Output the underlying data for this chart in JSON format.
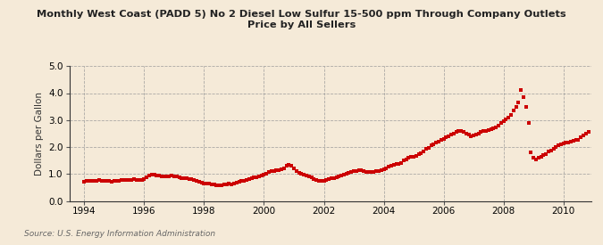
{
  "title": "Monthly West Coast (PADD 5) No 2 Diesel Low Sulfur 15-500 ppm Through Company Outlets\nPrice by All Sellers",
  "ylabel": "Dollars per Gallon",
  "source": "Source: U.S. Energy Information Administration",
  "background_color": "#f5ead8",
  "plot_bg_color": "#f5ead8",
  "line_color": "#cc0000",
  "marker": "s",
  "markersize": 2.2,
  "linewidth": 0.0,
  "ylim": [
    0.0,
    5.0
  ],
  "yticks": [
    0.0,
    1.0,
    2.0,
    3.0,
    4.0,
    5.0
  ],
  "xlim_start": 1993.5,
  "xlim_end": 2010.92,
  "xticks": [
    1994,
    1996,
    1998,
    2000,
    2002,
    2004,
    2006,
    2008,
    2010
  ],
  "data": [
    [
      1994.0,
      0.72
    ],
    [
      1994.083,
      0.73
    ],
    [
      1994.167,
      0.74
    ],
    [
      1994.25,
      0.73
    ],
    [
      1994.333,
      0.73
    ],
    [
      1994.417,
      0.74
    ],
    [
      1994.5,
      0.77
    ],
    [
      1994.583,
      0.76
    ],
    [
      1994.667,
      0.75
    ],
    [
      1994.75,
      0.74
    ],
    [
      1994.833,
      0.73
    ],
    [
      1994.917,
      0.72
    ],
    [
      1995.0,
      0.73
    ],
    [
      1995.083,
      0.74
    ],
    [
      1995.167,
      0.75
    ],
    [
      1995.25,
      0.77
    ],
    [
      1995.333,
      0.77
    ],
    [
      1995.417,
      0.77
    ],
    [
      1995.5,
      0.78
    ],
    [
      1995.583,
      0.79
    ],
    [
      1995.667,
      0.8
    ],
    [
      1995.75,
      0.79
    ],
    [
      1995.833,
      0.78
    ],
    [
      1995.917,
      0.77
    ],
    [
      1996.0,
      0.82
    ],
    [
      1996.083,
      0.88
    ],
    [
      1996.167,
      0.95
    ],
    [
      1996.25,
      0.97
    ],
    [
      1996.333,
      0.96
    ],
    [
      1996.417,
      0.94
    ],
    [
      1996.5,
      0.93
    ],
    [
      1996.583,
      0.91
    ],
    [
      1996.667,
      0.9
    ],
    [
      1996.75,
      0.91
    ],
    [
      1996.833,
      0.92
    ],
    [
      1996.917,
      0.93
    ],
    [
      1997.0,
      0.91
    ],
    [
      1997.083,
      0.9
    ],
    [
      1997.167,
      0.88
    ],
    [
      1997.25,
      0.85
    ],
    [
      1997.333,
      0.85
    ],
    [
      1997.417,
      0.84
    ],
    [
      1997.5,
      0.82
    ],
    [
      1997.583,
      0.8
    ],
    [
      1997.667,
      0.78
    ],
    [
      1997.75,
      0.76
    ],
    [
      1997.833,
      0.72
    ],
    [
      1997.917,
      0.68
    ],
    [
      1998.0,
      0.66
    ],
    [
      1998.083,
      0.64
    ],
    [
      1998.167,
      0.63
    ],
    [
      1998.25,
      0.62
    ],
    [
      1998.333,
      0.6
    ],
    [
      1998.417,
      0.58
    ],
    [
      1998.5,
      0.57
    ],
    [
      1998.583,
      0.58
    ],
    [
      1998.667,
      0.6
    ],
    [
      1998.75,
      0.62
    ],
    [
      1998.833,
      0.63
    ],
    [
      1998.917,
      0.62
    ],
    [
      1999.0,
      0.64
    ],
    [
      1999.083,
      0.67
    ],
    [
      1999.167,
      0.7
    ],
    [
      1999.25,
      0.73
    ],
    [
      1999.333,
      0.76
    ],
    [
      1999.417,
      0.79
    ],
    [
      1999.5,
      0.82
    ],
    [
      1999.583,
      0.85
    ],
    [
      1999.667,
      0.87
    ],
    [
      1999.75,
      0.89
    ],
    [
      1999.833,
      0.91
    ],
    [
      1999.917,
      0.93
    ],
    [
      2000.0,
      0.98
    ],
    [
      2000.083,
      1.02
    ],
    [
      2000.167,
      1.08
    ],
    [
      2000.25,
      1.1
    ],
    [
      2000.333,
      1.12
    ],
    [
      2000.417,
      1.13
    ],
    [
      2000.5,
      1.15
    ],
    [
      2000.583,
      1.18
    ],
    [
      2000.667,
      1.22
    ],
    [
      2000.75,
      1.3
    ],
    [
      2000.833,
      1.35
    ],
    [
      2000.917,
      1.32
    ],
    [
      2001.0,
      1.2
    ],
    [
      2001.083,
      1.1
    ],
    [
      2001.167,
      1.05
    ],
    [
      2001.25,
      1.0
    ],
    [
      2001.333,
      0.97
    ],
    [
      2001.417,
      0.94
    ],
    [
      2001.5,
      0.9
    ],
    [
      2001.583,
      0.87
    ],
    [
      2001.667,
      0.82
    ],
    [
      2001.75,
      0.78
    ],
    [
      2001.833,
      0.75
    ],
    [
      2001.917,
      0.73
    ],
    [
      2002.0,
      0.76
    ],
    [
      2002.083,
      0.78
    ],
    [
      2002.167,
      0.8
    ],
    [
      2002.25,
      0.83
    ],
    [
      2002.333,
      0.85
    ],
    [
      2002.417,
      0.87
    ],
    [
      2002.5,
      0.9
    ],
    [
      2002.583,
      0.93
    ],
    [
      2002.667,
      0.97
    ],
    [
      2002.75,
      1.02
    ],
    [
      2002.833,
      1.05
    ],
    [
      2002.917,
      1.08
    ],
    [
      2003.0,
      1.1
    ],
    [
      2003.083,
      1.12
    ],
    [
      2003.167,
      1.15
    ],
    [
      2003.25,
      1.14
    ],
    [
      2003.333,
      1.1
    ],
    [
      2003.417,
      1.08
    ],
    [
      2003.5,
      1.07
    ],
    [
      2003.583,
      1.08
    ],
    [
      2003.667,
      1.09
    ],
    [
      2003.75,
      1.1
    ],
    [
      2003.833,
      1.12
    ],
    [
      2003.917,
      1.15
    ],
    [
      2004.0,
      1.18
    ],
    [
      2004.083,
      1.22
    ],
    [
      2004.167,
      1.28
    ],
    [
      2004.25,
      1.32
    ],
    [
      2004.333,
      1.35
    ],
    [
      2004.417,
      1.37
    ],
    [
      2004.5,
      1.38
    ],
    [
      2004.583,
      1.42
    ],
    [
      2004.667,
      1.5
    ],
    [
      2004.75,
      1.55
    ],
    [
      2004.833,
      1.6
    ],
    [
      2004.917,
      1.62
    ],
    [
      2005.0,
      1.65
    ],
    [
      2005.083,
      1.68
    ],
    [
      2005.167,
      1.72
    ],
    [
      2005.25,
      1.78
    ],
    [
      2005.333,
      1.85
    ],
    [
      2005.417,
      1.92
    ],
    [
      2005.5,
      1.98
    ],
    [
      2005.583,
      2.05
    ],
    [
      2005.667,
      2.1
    ],
    [
      2005.75,
      2.15
    ],
    [
      2005.833,
      2.2
    ],
    [
      2005.917,
      2.25
    ],
    [
      2006.0,
      2.3
    ],
    [
      2006.083,
      2.35
    ],
    [
      2006.167,
      2.4
    ],
    [
      2006.25,
      2.45
    ],
    [
      2006.333,
      2.5
    ],
    [
      2006.417,
      2.55
    ],
    [
      2006.5,
      2.58
    ],
    [
      2006.583,
      2.6
    ],
    [
      2006.667,
      2.55
    ],
    [
      2006.75,
      2.5
    ],
    [
      2006.833,
      2.45
    ],
    [
      2006.917,
      2.4
    ],
    [
      2007.0,
      2.42
    ],
    [
      2007.083,
      2.45
    ],
    [
      2007.167,
      2.5
    ],
    [
      2007.25,
      2.55
    ],
    [
      2007.333,
      2.58
    ],
    [
      2007.417,
      2.6
    ],
    [
      2007.5,
      2.62
    ],
    [
      2007.583,
      2.65
    ],
    [
      2007.667,
      2.68
    ],
    [
      2007.75,
      2.72
    ],
    [
      2007.833,
      2.8
    ],
    [
      2007.917,
      2.88
    ],
    [
      2008.0,
      2.95
    ],
    [
      2008.083,
      3.02
    ],
    [
      2008.167,
      3.1
    ],
    [
      2008.25,
      3.2
    ],
    [
      2008.333,
      3.35
    ],
    [
      2008.417,
      3.5
    ],
    [
      2008.5,
      3.65
    ],
    [
      2008.583,
      4.12
    ],
    [
      2008.667,
      3.85
    ],
    [
      2008.75,
      3.5
    ],
    [
      2008.833,
      2.9
    ],
    [
      2008.917,
      1.8
    ],
    [
      2009.0,
      1.6
    ],
    [
      2009.083,
      1.55
    ],
    [
      2009.167,
      1.6
    ],
    [
      2009.25,
      1.65
    ],
    [
      2009.333,
      1.7
    ],
    [
      2009.417,
      1.75
    ],
    [
      2009.5,
      1.82
    ],
    [
      2009.583,
      1.88
    ],
    [
      2009.667,
      1.95
    ],
    [
      2009.75,
      2.0
    ],
    [
      2009.833,
      2.05
    ],
    [
      2009.917,
      2.1
    ],
    [
      2010.0,
      2.12
    ],
    [
      2010.083,
      2.15
    ],
    [
      2010.167,
      2.18
    ],
    [
      2010.25,
      2.2
    ],
    [
      2010.333,
      2.22
    ],
    [
      2010.417,
      2.25
    ],
    [
      2010.5,
      2.28
    ],
    [
      2010.583,
      2.35
    ],
    [
      2010.667,
      2.42
    ],
    [
      2010.75,
      2.5
    ],
    [
      2010.833,
      2.57
    ]
  ]
}
